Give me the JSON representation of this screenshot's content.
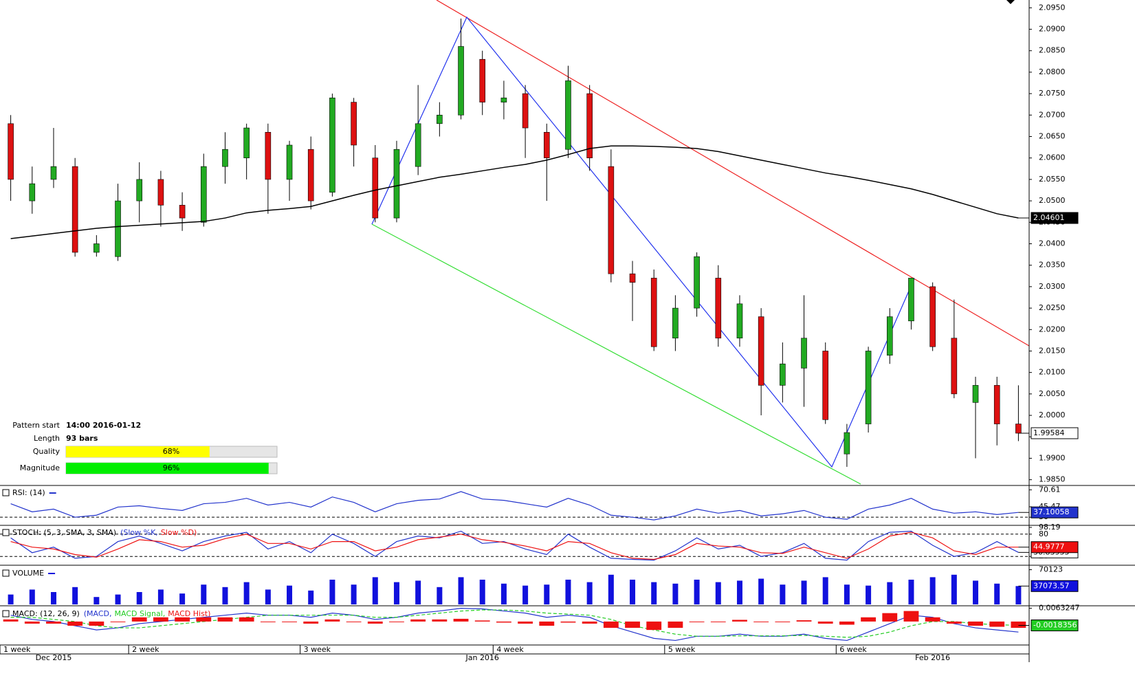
{
  "pattern": {
    "start_label": "Pattern start",
    "start": "14:00 2016-01-12",
    "length_label": "Length",
    "length": "93 bars",
    "quality_label": "Quality",
    "quality": 68,
    "quality_text": "68%",
    "quality_color": "#ffff00",
    "magnitude_label": "Magnitude",
    "magnitude": 96,
    "magnitude_text": "96%",
    "magnitude_color": "#00ee00"
  },
  "chart_data": [
    {
      "type": "candlestick",
      "up_color": "#22aa22",
      "down_color": "#dd1111",
      "categories": [
        "1 week",
        null,
        null,
        null,
        null,
        null,
        "2 week",
        null,
        null,
        null,
        null,
        null,
        null,
        null,
        "3 week",
        null,
        null,
        null,
        null,
        null,
        null,
        null,
        null,
        "4 week",
        null,
        null,
        null,
        null,
        null,
        null,
        null,
        "5 week",
        null,
        null,
        null,
        null,
        null,
        null,
        null,
        "6 week",
        null,
        null,
        null,
        null,
        null,
        null,
        null,
        null
      ],
      "months": [
        null,
        null,
        "Dec 2015",
        null,
        null,
        null,
        null,
        null,
        null,
        null,
        null,
        null,
        null,
        null,
        null,
        null,
        null,
        null,
        null,
        null,
        null,
        null,
        "Jan 2016",
        null,
        null,
        null,
        null,
        null,
        null,
        null,
        null,
        null,
        null,
        null,
        null,
        null,
        null,
        null,
        null,
        null,
        null,
        null,
        null,
        "Feb 2016",
        null,
        null,
        null,
        null
      ],
      "open": [
        2.068,
        2.05,
        2.055,
        2.058,
        2.038,
        2.037,
        2.05,
        2.055,
        2.049,
        2.045,
        2.058,
        2.06,
        2.066,
        2.055,
        2.062,
        2.052,
        2.073,
        2.06,
        2.046,
        2.058,
        2.068,
        2.07,
        2.083,
        2.073,
        2.075,
        2.066,
        2.062,
        2.075,
        2.058,
        2.033,
        2.032,
        2.018,
        2.025,
        2.032,
        2.018,
        2.023,
        2.007,
        2.011,
        2.015,
        1.991,
        1.998,
        2.014,
        2.022,
        2.03,
        2.018,
        2.003,
        2.007,
        1.998
      ],
      "high": [
        2.07,
        2.058,
        2.067,
        2.06,
        2.042,
        2.054,
        2.059,
        2.057,
        2.052,
        2.061,
        2.066,
        2.068,
        2.068,
        2.064,
        2.065,
        2.075,
        2.074,
        2.063,
        2.064,
        2.077,
        2.073,
        2.0925,
        2.085,
        2.078,
        2.077,
        2.068,
        2.0815,
        2.077,
        2.062,
        2.036,
        2.034,
        2.028,
        2.038,
        2.035,
        2.028,
        2.025,
        2.017,
        2.028,
        2.017,
        1.998,
        2.016,
        2.025,
        2.032,
        2.031,
        2.027,
        2.009,
        2.009,
        2.007
      ],
      "low": [
        2.05,
        2.047,
        2.053,
        2.037,
        2.037,
        2.036,
        2.045,
        2.044,
        2.043,
        2.044,
        2.054,
        2.055,
        2.047,
        2.05,
        2.048,
        2.051,
        2.058,
        2.045,
        2.045,
        2.056,
        2.065,
        2.069,
        2.07,
        2.069,
        2.06,
        2.05,
        2.06,
        2.057,
        2.031,
        2.022,
        2.015,
        2.015,
        2.023,
        2.016,
        2.016,
        2.0,
        2.003,
        2.002,
        1.998,
        1.988,
        1.996,
        2.012,
        2.02,
        2.015,
        2.004,
        1.99,
        1.993,
        1.994
      ],
      "close": [
        2.055,
        2.054,
        2.058,
        2.038,
        2.04,
        2.05,
        2.055,
        2.049,
        2.046,
        2.058,
        2.062,
        2.067,
        2.055,
        2.063,
        2.05,
        2.074,
        2.063,
        2.046,
        2.062,
        2.068,
        2.07,
        2.086,
        2.073,
        2.074,
        2.067,
        2.06,
        2.078,
        2.06,
        2.033,
        2.031,
        2.016,
        2.025,
        2.037,
        2.018,
        2.026,
        2.007,
        2.012,
        2.018,
        1.999,
        1.996,
        2.015,
        2.023,
        2.032,
        2.016,
        2.005,
        2.007,
        1.998,
        1.99584
      ],
      "ma": {
        "color": "#000000",
        "values": [
          2.0412,
          2.0418,
          2.0424,
          2.043,
          2.0436,
          2.044,
          2.0443,
          2.0446,
          2.0449,
          2.0452,
          2.046,
          2.0472,
          2.0478,
          2.0482,
          2.0487,
          2.05,
          2.0513,
          2.0525,
          2.0535,
          2.0545,
          2.0555,
          2.0562,
          2.057,
          2.0578,
          2.0585,
          2.0595,
          2.0608,
          2.0622,
          2.0628,
          2.0628,
          2.0627,
          2.0625,
          2.0622,
          2.0615,
          2.0605,
          2.0595,
          2.0585,
          2.0575,
          2.0565,
          2.0557,
          2.0548,
          2.0538,
          2.0528,
          2.0515,
          2.05,
          2.0485,
          2.047,
          2.04601
        ]
      },
      "ylim": [
        1.9835,
        2.0965
      ],
      "yticks": [
        {
          "value": 2.095,
          "label": "2.0950"
        },
        {
          "value": 2.09,
          "label": "2.0900"
        },
        {
          "value": 2.085,
          "label": "2.0850"
        },
        {
          "value": 2.08,
          "label": "2.0800"
        },
        {
          "value": 2.075,
          "label": "2.0750"
        },
        {
          "value": 2.07,
          "label": "2.0700"
        },
        {
          "value": 2.065,
          "label": "2.0650"
        },
        {
          "value": 2.06,
          "label": "2.0600"
        },
        {
          "value": 2.055,
          "label": "2.0550"
        },
        {
          "value": 2.05,
          "label": "2.0500"
        },
        {
          "value": 2.045,
          "label": "2.0450"
        },
        {
          "value": 2.04,
          "label": "2.0400"
        },
        {
          "value": 2.035,
          "label": "2.0350"
        },
        {
          "value": 2.03,
          "label": "2.0300"
        },
        {
          "value": 2.025,
          "label": "2.0250"
        },
        {
          "value": 2.02,
          "label": "2.0200"
        },
        {
          "value": 2.015,
          "label": "2.0150"
        },
        {
          "value": 2.01,
          "label": "2.0100"
        },
        {
          "value": 2.005,
          "label": "2.0050"
        },
        {
          "value": 2,
          "label": "2.0000"
        },
        {
          "value": 1.995,
          "label": "1.9950"
        },
        {
          "value": 1.99,
          "label": "1.9900"
        },
        {
          "value": 1.985,
          "label": "1.9850"
        }
      ]
    },
    {
      "type": "line",
      "title": "RSI: (14)",
      "ylim": [
        20,
        75
      ],
      "yticks": [
        70.61,
        45.47,
        30
      ],
      "dashed": [
        30
      ],
      "series": [
        {
          "color": "#2233cc",
          "values": [
            50,
            38,
            42,
            30,
            33,
            45,
            47,
            43,
            40,
            50,
            52,
            58,
            48,
            52,
            45,
            60,
            52,
            38,
            50,
            55,
            57,
            68,
            57,
            55,
            50,
            45,
            58,
            48,
            33,
            30,
            26,
            32,
            42,
            36,
            40,
            32,
            35,
            40,
            30,
            27,
            42,
            48,
            58,
            42,
            36,
            38,
            34,
            37.10058
          ]
        }
      ]
    },
    {
      "type": "line",
      "title": "STOCH: (5, 3, SMA, 3, SMA)",
      "ylim": [
        0,
        100
      ],
      "yticks": [
        98.19,
        80,
        20
      ],
      "dashed": [
        80,
        20
      ],
      "series": [
        {
          "name": "(Slow %K,",
          "color": "#2233cc",
          "values": [
            70,
            30,
            45,
            15,
            20,
            60,
            75,
            55,
            35,
            60,
            75,
            85,
            40,
            60,
            30,
            80,
            55,
            20,
            60,
            75,
            70,
            88,
            55,
            60,
            40,
            25,
            80,
            45,
            15,
            12,
            10,
            35,
            70,
            40,
            50,
            20,
            30,
            55,
            15,
            10,
            60,
            85,
            88,
            50,
            20,
            30,
            60,
            30.83955
          ]
        },
        {
          "name": "Slow %D)",
          "color": "#ee1111",
          "values": [
            60,
            45,
            40,
            25,
            18,
            40,
            65,
            60,
            45,
            50,
            68,
            80,
            55,
            55,
            40,
            60,
            60,
            35,
            45,
            65,
            72,
            80,
            65,
            58,
            48,
            35,
            60,
            55,
            30,
            15,
            12,
            25,
            55,
            48,
            45,
            30,
            28,
            45,
            30,
            15,
            40,
            75,
            85,
            70,
            35,
            25,
            45,
            44.9777
          ]
        }
      ]
    },
    {
      "type": "bar",
      "title": "VOLUME",
      "ylim": [
        0,
        75000
      ],
      "yticks": [
        70123
      ],
      "series": [
        {
          "color": "#1111dd",
          "values": [
            20000,
            30000,
            25000,
            35000,
            15000,
            20000,
            25000,
            30000,
            22000,
            40000,
            35000,
            45000,
            30000,
            38000,
            28000,
            50000,
            40000,
            55000,
            45000,
            48000,
            35000,
            55000,
            50000,
            42000,
            38000,
            40000,
            50000,
            45000,
            60000,
            50000,
            45000,
            42000,
            50000,
            45000,
            48000,
            52000,
            40000,
            48000,
            55000,
            40000,
            38000,
            45000,
            50000,
            55000,
            60000,
            48000,
            42000,
            37073.57
          ]
        }
      ]
    },
    {
      "type": "line",
      "title": "MACD: (12, 26, 9)",
      "ylim": [
        -0.0105,
        0.0065
      ],
      "yticks": [
        0.0063247
      ],
      "dashed": [],
      "series": [
        {
          "name": "(MACD,",
          "color": "#2233cc",
          "values": [
            0.003,
            0.001,
            0,
            -0.002,
            -0.004,
            -0.003,
            -0.001,
            0,
            0.001,
            0.002,
            0.003,
            0.004,
            0.003,
            0.003,
            0.002,
            0.004,
            0.003,
            0.001,
            0.002,
            0.004,
            0.005,
            0.0063,
            0.006,
            0.005,
            0.004,
            0.002,
            0.003,
            0.002,
            -0.002,
            -0.005,
            -0.008,
            -0.009,
            -0.007,
            -0.007,
            -0.006,
            -0.007,
            -0.007,
            -0.006,
            -0.008,
            -0.009,
            -0.005,
            -0.001,
            0.003,
            0.002,
            -0.001,
            -0.003,
            -0.004,
            -0.005
          ]
        },
        {
          "name": "MACD Signal,",
          "color": "#22cc22",
          "values": [
            0.002,
            0.002,
            0.001,
            0,
            -0.002,
            -0.003,
            -0.003,
            -0.002,
            -0.001,
            0,
            0.001,
            0.002,
            0.003,
            0.003,
            0.003,
            0.003,
            0.003,
            0.002,
            0.002,
            0.003,
            0.004,
            0.005,
            0.0055,
            0.0055,
            0.005,
            0.004,
            0.0035,
            0.003,
            0.001,
            -0.002,
            -0.004,
            -0.006,
            -0.007,
            -0.007,
            -0.0068,
            -0.0068,
            -0.0068,
            -0.0066,
            -0.007,
            -0.0075,
            -0.007,
            -0.005,
            -0.002,
            0,
            0,
            -0.001,
            -0.0015,
            -0.0018356
          ]
        },
        {
          "name": "MACD Hist)",
          "color": "#ee1111",
          "type": "bar",
          "values": [
            0.001,
            -0.001,
            -0.001,
            -0.002,
            -0.002,
            0,
            0.002,
            0.002,
            0.002,
            0.002,
            0.002,
            0.002,
            0,
            0,
            -0.001,
            0.001,
            0,
            -0.001,
            0,
            0.001,
            0.001,
            0.0013,
            0.0005,
            -0.0005,
            -0.001,
            -0.002,
            -0.0005,
            -0.001,
            -0.003,
            -0.003,
            -0.004,
            -0.003,
            0,
            0,
            0.0008,
            -0.0002,
            -0.0002,
            0.0006,
            -0.001,
            -0.0015,
            0.002,
            0.004,
            0.005,
            0.002,
            -0.001,
            -0.002,
            -0.0025,
            -0.003
          ]
        }
      ]
    }
  ]
}
